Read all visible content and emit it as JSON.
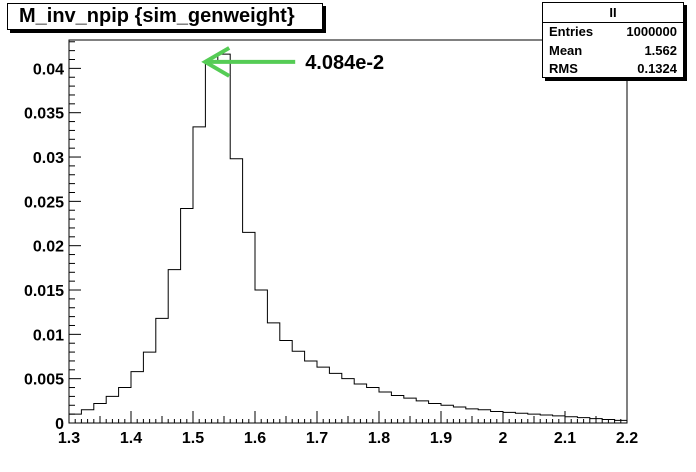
{
  "title": "M_inv_npip {sim_genweight}",
  "stats": {
    "name": "II",
    "rows": [
      {
        "label": "Entries",
        "value": "1000000"
      },
      {
        "label": "Mean",
        "value": "1.562"
      },
      {
        "label": "RMS",
        "value": "0.1324"
      }
    ]
  },
  "chart_data": {
    "type": "bar",
    "title": "M_inv_npip {sim_genweight}",
    "xlabel": "",
    "ylabel": "",
    "xlim": [
      1.3,
      2.2
    ],
    "ylim": [
      0,
      0.0432
    ],
    "bin_width": 0.02,
    "x": [
      1.3,
      1.32,
      1.34,
      1.36,
      1.38,
      1.4,
      1.42,
      1.44,
      1.46,
      1.48,
      1.5,
      1.52,
      1.54,
      1.56,
      1.58,
      1.6,
      1.62,
      1.64,
      1.66,
      1.68,
      1.7,
      1.72,
      1.74,
      1.76,
      1.78,
      1.8,
      1.82,
      1.84,
      1.86,
      1.88,
      1.9,
      1.92,
      1.94,
      1.96,
      1.98,
      2.0,
      2.02,
      2.04,
      2.06,
      2.08,
      2.1,
      2.12,
      2.14,
      2.16,
      2.18
    ],
    "values": [
      0.001,
      0.0015,
      0.0022,
      0.003,
      0.004,
      0.0058,
      0.008,
      0.0118,
      0.0173,
      0.0242,
      0.0334,
      0.0408,
      0.0416,
      0.0298,
      0.0215,
      0.015,
      0.0113,
      0.0093,
      0.0081,
      0.007,
      0.0063,
      0.0056,
      0.005,
      0.0044,
      0.004,
      0.0035,
      0.0031,
      0.0028,
      0.0025,
      0.0022,
      0.002,
      0.0018,
      0.0016,
      0.0015,
      0.0013,
      0.0012,
      0.0011,
      0.001,
      0.0009,
      0.0008,
      0.0007,
      0.0006,
      0.0005,
      0.0004,
      0.0003
    ],
    "xticks": [
      "1.3",
      "1.4",
      "1.5",
      "1.6",
      "1.7",
      "1.8",
      "1.9",
      "2",
      "2.1",
      "2.2"
    ],
    "yticks": [
      "0",
      "0.005",
      "0.01",
      "0.015",
      "0.02",
      "0.025",
      "0.03",
      "0.035",
      "0.04"
    ],
    "grid": false,
    "line_color": "#000000",
    "annotation": {
      "text": "4.084e-2",
      "x": 1.51,
      "y": 0.04084,
      "color": "#55cc55"
    }
  }
}
